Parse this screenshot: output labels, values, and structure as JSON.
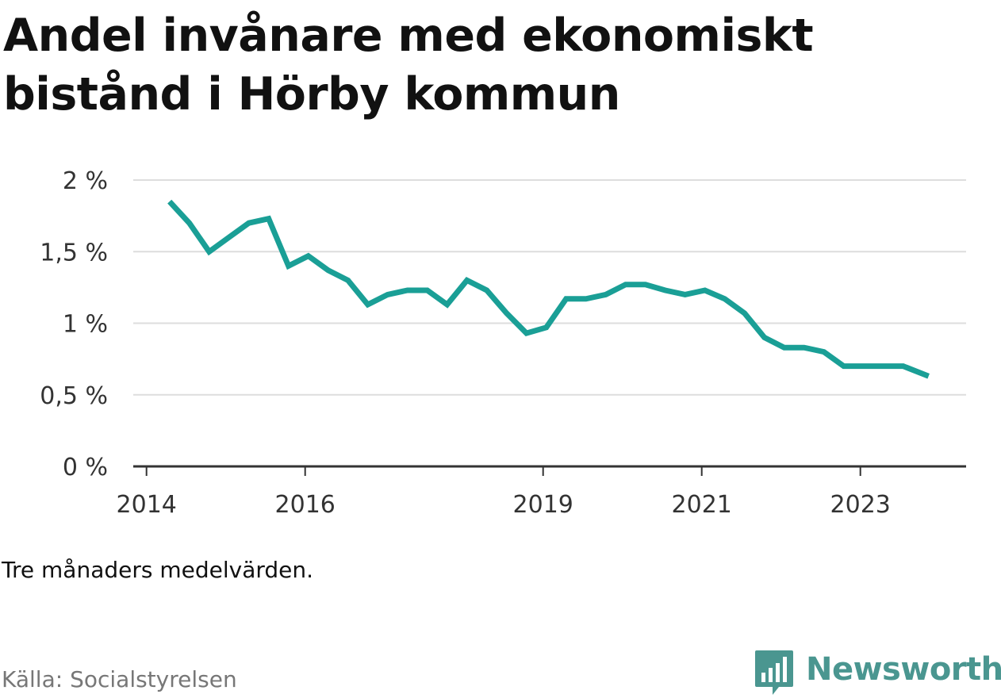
{
  "header": {
    "title": "Andel invånare med ekonomiskt bistånd i Hörby kommun"
  },
  "footer": {
    "note": "Tre månaders medelvärden.",
    "source": "Källa: Socialstyrelsen",
    "brand": "Newsworthy"
  },
  "colors": {
    "line": "#1a9f96",
    "grid": "#dddddd",
    "axis": "#333333",
    "brand": "#4a9690"
  },
  "chart_data": {
    "type": "line",
    "title": "Andel invånare med ekonomiskt bistånd i Hörby kommun",
    "xlabel": "",
    "ylabel": "",
    "y_unit": "%",
    "ylim": [
      0,
      2
    ],
    "xlim": [
      2013.833,
      2024.333
    ],
    "yticks": [
      {
        "value": 0,
        "label": "0 %"
      },
      {
        "value": 0.5,
        "label": "0,5 %"
      },
      {
        "value": 1,
        "label": "1 %"
      },
      {
        "value": 1.5,
        "label": "1,5 %"
      },
      {
        "value": 2,
        "label": "2 %"
      }
    ],
    "xticks": [
      {
        "value": 2014,
        "label": "2014"
      },
      {
        "value": 2016,
        "label": "2016"
      },
      {
        "value": 2019,
        "label": "2019"
      },
      {
        "value": 2021,
        "label": "2021"
      },
      {
        "value": 2023,
        "label": "2023"
      }
    ],
    "grid": true,
    "legend": "none",
    "series": [
      {
        "x": [
          2014.29,
          2014.54,
          2014.79,
          2015.04,
          2015.29,
          2015.54,
          2015.79,
          2016.04,
          2016.29,
          2016.54,
          2016.79,
          2017.04,
          2017.29,
          2017.54,
          2017.79,
          2018.04,
          2018.29,
          2018.54,
          2018.79,
          2019.04,
          2019.29,
          2019.54,
          2019.79,
          2020.04,
          2020.29,
          2020.54,
          2020.79,
          2021.04,
          2021.29,
          2021.54,
          2021.79,
          2022.04,
          2022.29,
          2022.54,
          2022.79,
          2023.04,
          2023.29,
          2023.54,
          2023.86
        ],
        "values": [
          1.85,
          1.7,
          1.5,
          1.6,
          1.7,
          1.73,
          1.4,
          1.47,
          1.37,
          1.3,
          1.13,
          1.2,
          1.23,
          1.23,
          1.13,
          1.3,
          1.23,
          1.07,
          0.93,
          0.97,
          1.17,
          1.17,
          1.2,
          1.27,
          1.27,
          1.23,
          1.2,
          1.23,
          1.17,
          1.07,
          0.9,
          0.83,
          0.83,
          0.8,
          0.7,
          0.7,
          0.7,
          0.7,
          0.63
        ]
      }
    ]
  }
}
